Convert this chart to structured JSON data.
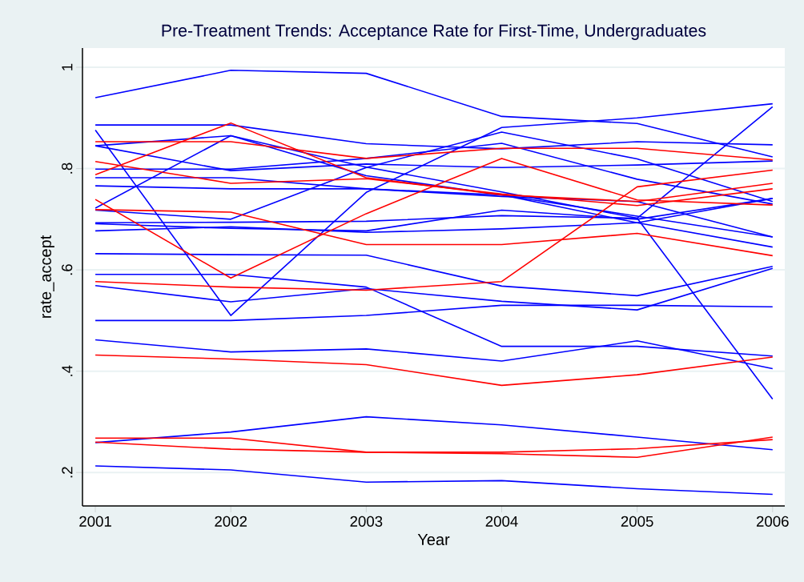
{
  "chart_data": {
    "type": "line",
    "title": "Pre-Treatment Trends: Acceptance Rate for First-Time, Undergraduates",
    "xlabel": "Year",
    "ylabel": "rate_accept",
    "x": [
      2001,
      2002,
      2003,
      2004,
      2005,
      2006
    ],
    "xlim": [
      2000.905,
      2006.09
    ],
    "ylim": [
      0.134,
      1.038
    ],
    "xticks": [
      2001,
      2002,
      2003,
      2004,
      2005,
      2006
    ],
    "yticks": [
      {
        "value": 0.2,
        "label": ".2"
      },
      {
        "value": 0.4,
        "label": ".4"
      },
      {
        "value": 0.6,
        "label": ".6"
      },
      {
        "value": 0.8,
        "label": ".8"
      },
      {
        "value": 1,
        "label": "1"
      }
    ],
    "grid": "y",
    "series": [
      {
        "color": "#0000ff",
        "values": [
          0.94,
          0.994,
          0.988,
          0.903,
          0.889,
          0.823
        ]
      },
      {
        "color": "#0000ff",
        "values": [
          0.886,
          0.886,
          0.849,
          0.839,
          0.853,
          0.847
        ]
      },
      {
        "color": "#0000ff",
        "values": [
          0.876,
          0.51,
          0.753,
          0.881,
          0.9,
          0.928
        ]
      },
      {
        "color": "#0000ff",
        "values": [
          0.845,
          0.865,
          0.803,
          0.754,
          0.702,
          0.345
        ]
      },
      {
        "color": "#0000ff",
        "values": [
          0.845,
          0.796,
          0.809,
          0.802,
          0.807,
          0.815
        ]
      },
      {
        "color": "#0000ff",
        "values": [
          0.799,
          0.799,
          0.82,
          0.85,
          0.779,
          0.73
        ]
      },
      {
        "color": "#0000ff",
        "values": [
          0.782,
          0.782,
          0.76,
          0.745,
          0.735,
          0.665
        ]
      },
      {
        "color": "#0000ff",
        "values": [
          0.766,
          0.76,
          0.76,
          0.748,
          0.706,
          0.665
        ]
      },
      {
        "color": "#0000ff",
        "values": [
          0.722,
          0.865,
          0.786,
          0.748,
          0.693,
          0.645
        ]
      },
      {
        "color": "#0000ff",
        "values": [
          0.718,
          0.7,
          0.802,
          0.872,
          0.819,
          0.735
        ]
      },
      {
        "color": "#0000ff",
        "values": [
          0.693,
          0.694,
          0.696,
          0.707,
          0.702,
          0.922
        ]
      },
      {
        "color": "#0000ff",
        "values": [
          0.691,
          0.682,
          0.677,
          0.718,
          0.7,
          0.741
        ]
      },
      {
        "color": "#0000ff",
        "values": [
          0.677,
          0.685,
          0.674,
          0.681,
          0.693,
          0.741
        ]
      },
      {
        "color": "#0000ff",
        "values": [
          0.632,
          0.63,
          0.629,
          0.568,
          0.549,
          0.607
        ]
      },
      {
        "color": "#0000ff",
        "values": [
          0.591,
          0.591,
          0.566,
          0.449,
          0.449,
          0.43
        ]
      },
      {
        "color": "#0000ff",
        "values": [
          0.569,
          0.537,
          0.563,
          0.538,
          0.521,
          0.603
        ]
      },
      {
        "color": "#0000ff",
        "values": [
          0.5,
          0.5,
          0.51,
          0.53,
          0.53,
          0.527
        ]
      },
      {
        "color": "#0000ff",
        "values": [
          0.462,
          0.438,
          0.444,
          0.42,
          0.46,
          0.405
        ]
      },
      {
        "color": "#0000ff",
        "values": [
          0.259,
          0.28,
          0.31,
          0.294,
          0.27,
          0.245
        ]
      },
      {
        "color": "#0000ff",
        "values": [
          0.213,
          0.205,
          0.181,
          0.184,
          0.168,
          0.157
        ]
      },
      {
        "color": "#ff0000",
        "values": [
          0.853,
          0.853,
          0.82,
          0.84,
          0.84,
          0.817
        ]
      },
      {
        "color": "#ff0000",
        "values": [
          0.788,
          0.89,
          0.782,
          0.748,
          0.735,
          0.771
        ]
      },
      {
        "color": "#ff0000",
        "values": [
          0.814,
          0.771,
          0.78,
          0.75,
          0.727,
          0.76
        ]
      },
      {
        "color": "#ff0000",
        "values": [
          0.739,
          0.584,
          0.711,
          0.82,
          0.738,
          0.728
        ]
      },
      {
        "color": "#ff0000",
        "values": [
          0.577,
          0.566,
          0.56,
          0.577,
          0.764,
          0.797
        ]
      },
      {
        "color": "#ff0000",
        "values": [
          0.719,
          0.714,
          0.65,
          0.65,
          0.672,
          0.628
        ]
      },
      {
        "color": "#ff0000",
        "values": [
          0.432,
          0.424,
          0.413,
          0.372,
          0.393,
          0.428
        ]
      },
      {
        "color": "#ff0000",
        "values": [
          0.268,
          0.268,
          0.24,
          0.237,
          0.23,
          0.27
        ]
      },
      {
        "color": "#ff0000",
        "values": [
          0.26,
          0.246,
          0.24,
          0.24,
          0.247,
          0.265
        ]
      }
    ]
  }
}
